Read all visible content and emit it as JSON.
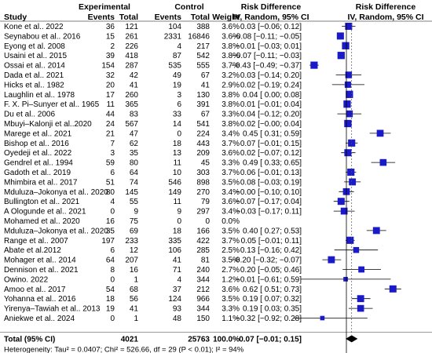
{
  "chart_data": {
    "type": "forest",
    "columns": {
      "study": "Study",
      "experimental": "Experimental",
      "control": "Control",
      "events": "Events",
      "total": "Total",
      "weight": "Weight",
      "rd_group": "Risk Difference",
      "rd_method": "IV, Random, 95% CI",
      "plot_group": "Risk Difference",
      "plot_method": "IV, Random, 95% CI"
    },
    "studies": [
      {
        "study": "Kone et al.. 2022",
        "e_events": "36",
        "e_total": "121",
        "c_events": "104",
        "c_total": "388",
        "weight": "3.6%",
        "ci_text": "0.03 [−0.06; 0.12]",
        "rd": 0.03,
        "lo": -0.06,
        "hi": 0.12
      },
      {
        "study": "Seynabou et al.. 2016",
        "e_events": "15",
        "e_total": "261",
        "c_events": "2331",
        "c_total": "16846",
        "weight": "3.6%",
        "ci_text": "−0.08 [−0.11; −0.05]",
        "rd": -0.08,
        "lo": -0.11,
        "hi": -0.05
      },
      {
        "study": "Eyong et al. 2008",
        "e_events": "2",
        "e_total": "226",
        "c_events": "4",
        "c_total": "217",
        "weight": "3.8%",
        "ci_text": "−0.01 [−0.03; 0.01]",
        "rd": -0.01,
        "lo": -0.03,
        "hi": 0.01
      },
      {
        "study": "Usaini et al.. 2015",
        "e_events": "39",
        "e_total": "418",
        "c_events": "87",
        "c_total": "542",
        "weight": "3.8%",
        "ci_text": "−0.07 [−0.11; −0.03]",
        "rd": -0.07,
        "lo": -0.11,
        "hi": -0.03
      },
      {
        "study": "Ossai et al.. 2014",
        "e_events": "154",
        "e_total": "287",
        "c_events": "535",
        "c_total": "555",
        "weight": "3.7%",
        "ci_text": "−0.43 [−0.49; −0.37]",
        "rd": -0.43,
        "lo": -0.49,
        "hi": -0.37
      },
      {
        "study": "Dada et al.. 2021",
        "e_events": "32",
        "e_total": "42",
        "c_events": "49",
        "c_total": "67",
        "weight": "3.2%",
        "ci_text": "0.03 [−0.14; 0.20]",
        "rd": 0.03,
        "lo": -0.14,
        "hi": 0.2
      },
      {
        "study": "Hicks et al.. 1982",
        "e_events": "20",
        "e_total": "41",
        "c_events": "19",
        "c_total": "41",
        "weight": "2.9%",
        "ci_text": "0.02 [−0.19; 0.24]",
        "rd": 0.02,
        "lo": -0.19,
        "hi": 0.24
      },
      {
        "study": "Laughlin et al.. 1978",
        "e_events": "17",
        "e_total": "260",
        "c_events": "3",
        "c_total": "130",
        "weight": "3.8%",
        "ci_text": "0.04 [ 0.00; 0.08]",
        "rd": 0.04,
        "lo": 0.0,
        "hi": 0.08
      },
      {
        "study": "F. X. Pi–Sunyer et al.. 1965",
        "e_events": "11",
        "e_total": "365",
        "c_events": "6",
        "c_total": "391",
        "weight": "3.8%",
        "ci_text": "0.01 [−0.01; 0.04]",
        "rd": 0.01,
        "lo": -0.01,
        "hi": 0.04
      },
      {
        "study": "Du et al.. 2006",
        "e_events": "44",
        "e_total": "83",
        "c_events": "33",
        "c_total": "67",
        "weight": "3.3%",
        "ci_text": "0.04 [−0.12; 0.20]",
        "rd": 0.04,
        "lo": -0.12,
        "hi": 0.2
      },
      {
        "study": "Mbuyi–Kalonji et al..2020",
        "e_events": "24",
        "e_total": "567",
        "c_events": "14",
        "c_total": "541",
        "weight": "3.8%",
        "ci_text": "0.02 [−0.00; 0.04]",
        "rd": 0.02,
        "lo": 0.0,
        "hi": 0.04
      },
      {
        "study": "Marege et al.. 2021",
        "e_events": "21",
        "e_total": "47",
        "c_events": "0",
        "c_total": "224",
        "weight": "3.4%",
        "ci_text": "0.45 [ 0.31; 0.59]",
        "rd": 0.45,
        "lo": 0.31,
        "hi": 0.59
      },
      {
        "study": "Bishop et al.. 2016",
        "e_events": "7",
        "e_total": "62",
        "c_events": "18",
        "c_total": "443",
        "weight": "3.7%",
        "ci_text": "0.07 [−0.01; 0.15]",
        "rd": 0.07,
        "lo": -0.01,
        "hi": 0.15
      },
      {
        "study": "Oyedeji et al.. 2022",
        "e_events": "3",
        "e_total": "35",
        "c_events": "13",
        "c_total": "209",
        "weight": "3.6%",
        "ci_text": "0.02 [−0.07; 0.12]",
        "rd": 0.02,
        "lo": -0.07,
        "hi": 0.12
      },
      {
        "study": "Gendrel et al.. 1994",
        "e_events": "59",
        "e_total": "80",
        "c_events": "11",
        "c_total": "45",
        "weight": "3.3%",
        "ci_text": "0.49 [ 0.33; 0.65]",
        "rd": 0.49,
        "lo": 0.33,
        "hi": 0.65
      },
      {
        "study": "Gadoth et al.. 2019",
        "e_events": "6",
        "e_total": "64",
        "c_events": "10",
        "c_total": "303",
        "weight": "3.7%",
        "ci_text": "0.06 [−0.01; 0.13]",
        "rd": 0.06,
        "lo": -0.01,
        "hi": 0.13
      },
      {
        "study": "Mhimbira et al.. 2017",
        "e_events": "51",
        "e_total": "74",
        "c_events": "546",
        "c_total": "898",
        "weight": "3.5%",
        "ci_text": "0.08 [−0.03; 0.19]",
        "rd": 0.08,
        "lo": -0.03,
        "hi": 0.19
      },
      {
        "study": "Mduluza–Jokonya et al.. 2020",
        "e_events": "80",
        "e_total": "145",
        "c_events": "149",
        "c_total": "270",
        "weight": "3.4%",
        "ci_text": "−0.00 [−0.10; 0.10]",
        "rd": 0.0,
        "lo": -0.1,
        "hi": 0.1
      },
      {
        "study": "Bullington et al.. 2021",
        "e_events": "4",
        "e_total": "55",
        "c_events": "11",
        "c_total": "79",
        "weight": "3.6%",
        "ci_text": "−0.07 [−0.17; 0.04]",
        "rd": -0.07,
        "lo": -0.17,
        "hi": 0.04
      },
      {
        "study": "A Ologunde et al.. 2021",
        "e_events": "0",
        "e_total": "9",
        "c_events": "9",
        "c_total": "297",
        "weight": "3.4%",
        "ci_text": "−0.03 [−0.17; 0.11]",
        "rd": -0.03,
        "lo": -0.17,
        "hi": 0.11
      },
      {
        "study": "Mohamed et al.. 2020",
        "e_events": "16",
        "e_total": "75",
        "c_events": "0",
        "c_total": "0",
        "weight": "0.0%",
        "ci_text": "",
        "rd": null,
        "lo": null,
        "hi": null
      },
      {
        "study": "Mduluza–Jokonya  et al.. 2020",
        "e_events": "35",
        "e_total": "69",
        "c_events": "18",
        "c_total": "166",
        "weight": "3.5%",
        "ci_text": "0.40 [ 0.27; 0.53]",
        "rd": 0.4,
        "lo": 0.27,
        "hi": 0.53
      },
      {
        "study": "Range et al.. 2007",
        "e_events": "197",
        "e_total": "233",
        "c_events": "335",
        "c_total": "422",
        "weight": "3.7%",
        "ci_text": "0.05 [−0.01; 0.11]",
        "rd": 0.05,
        "lo": -0.01,
        "hi": 0.11
      },
      {
        "study": "Abate et al.2012",
        "e_events": "6",
        "e_total": "12",
        "c_events": "106",
        "c_total": "285",
        "weight": "2.5%",
        "ci_text": "0.13 [−0.16; 0.42]",
        "rd": 0.13,
        "lo": -0.16,
        "hi": 0.42
      },
      {
        "study": "Mohager et al.. 2014",
        "e_events": "64",
        "e_total": "207",
        "c_events": "41",
        "c_total": "81",
        "weight": "3.5%",
        "ci_text": "−0.20 [−0.32; −0.07]",
        "rd": -0.2,
        "lo": -0.32,
        "hi": -0.07
      },
      {
        "study": "Dennison et al.. 2021",
        "e_events": "8",
        "e_total": "16",
        "c_events": "71",
        "c_total": "240",
        "weight": "2.7%",
        "ci_text": "0.20 [−0.05; 0.46]",
        "rd": 0.2,
        "lo": -0.05,
        "hi": 0.46
      },
      {
        "study": "Owino. 2022",
        "e_events": "0",
        "e_total": "1",
        "c_events": "4",
        "c_total": "344",
        "weight": "1.2%",
        "ci_text": "−0.01 [−0.61; 0.59]",
        "rd": -0.01,
        "lo": -0.61,
        "hi": 0.59
      },
      {
        "study": "Amoo et al.. 2017",
        "e_events": "54",
        "e_total": "68",
        "c_events": "37",
        "c_total": "212",
        "weight": "3.6%",
        "ci_text": "0.62 [ 0.51; 0.73]",
        "rd": 0.62,
        "lo": 0.51,
        "hi": 0.73
      },
      {
        "study": "Yohanna et al.. 2016",
        "e_events": "18",
        "e_total": "56",
        "c_events": "124",
        "c_total": "966",
        "weight": "3.5%",
        "ci_text": "0.19 [ 0.07; 0.32]",
        "rd": 0.19,
        "lo": 0.07,
        "hi": 0.32
      },
      {
        "study": "Yirenya–Tawiah et al.. 2013",
        "e_events": "19",
        "e_total": "41",
        "c_events": "93",
        "c_total": "344",
        "weight": "3.3%",
        "ci_text": "0.19 [ 0.03; 0.35]",
        "rd": 0.19,
        "lo": 0.03,
        "hi": 0.35
      },
      {
        "study": "Aniekwe et al.. 2024",
        "e_events": "0",
        "e_total": "1",
        "c_events": "48",
        "c_total": "150",
        "weight": "1.1%",
        "ci_text": "−0.32 [−0.92; 0.28]",
        "rd": -0.32,
        "lo": -0.92,
        "hi": 0.28
      }
    ],
    "total": {
      "label": "Total (95% CI)",
      "e_total": "4021",
      "c_total": "25763",
      "weight": "100.0%",
      "ci_text": "0.07 [−0.01; 0.15]",
      "rd": 0.07,
      "lo": -0.01,
      "hi": 0.15
    },
    "heterogeneity": "Heterogeneity: Tau² = 0.0407; Chi² = 526.66, df = 29 (P < 0.01); I² = 94%",
    "x_ticks": [
      -0.5,
      0,
      0.5
    ],
    "x_tick_labels": [
      "−0.5",
      "0",
      "0.5"
    ],
    "x_range": [
      -0.7,
      0.75
    ],
    "colors": {
      "marker": "#1a1ac8",
      "summary": "#000000",
      "line": "#000000"
    }
  }
}
